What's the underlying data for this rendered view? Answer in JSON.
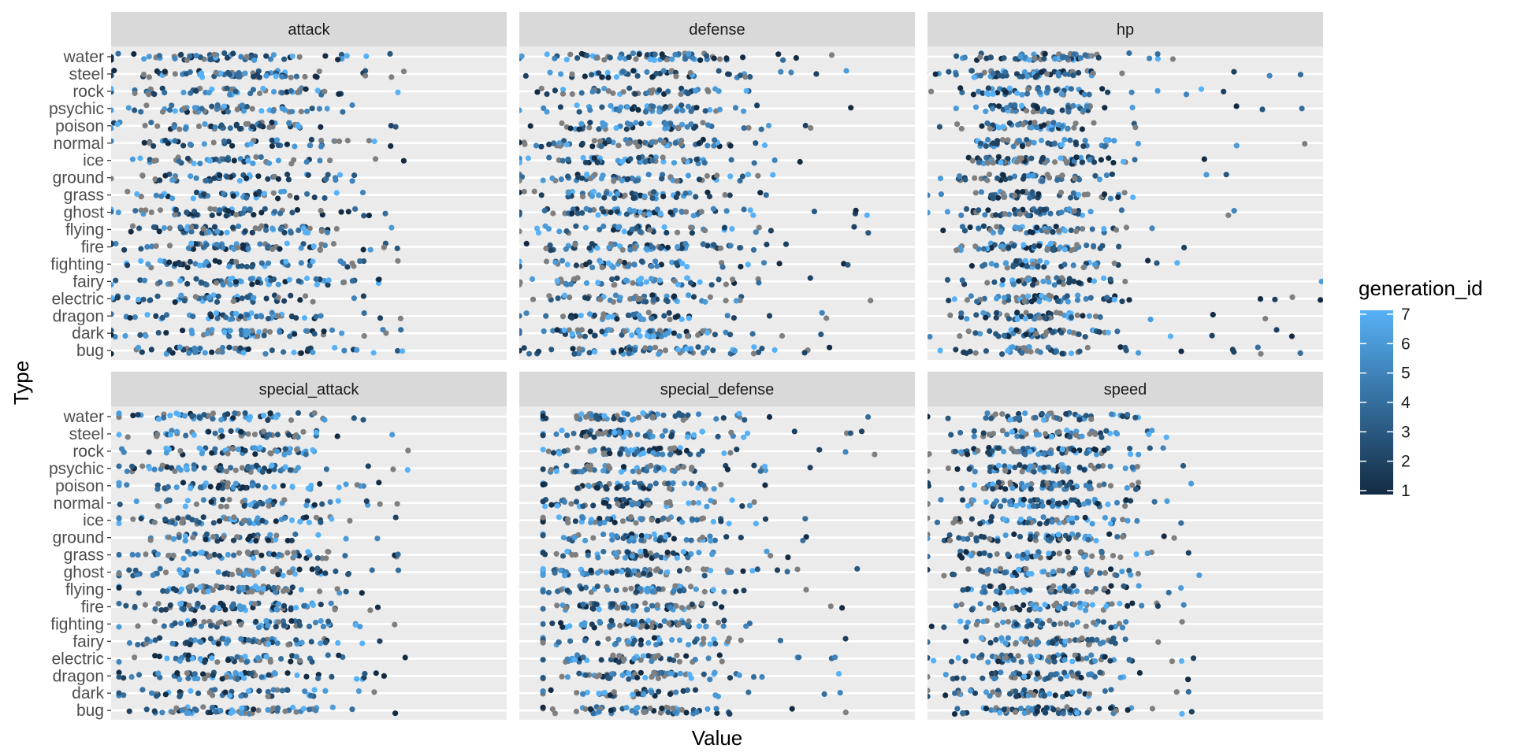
{
  "chart_data": {
    "type": "scatter",
    "subtype": "faceted-jitter-strip",
    "title": "",
    "xlabel": "Value",
    "ylabel": "Type",
    "facet_layout": "2x3 wrap",
    "shared_x_axis": true,
    "x_tick_labels_shown": false,
    "grid": "horizontal major lines",
    "legend_position": "right",
    "facets": [
      "attack",
      "defense",
      "hp",
      "special_attack",
      "special_defense",
      "speed"
    ],
    "types": [
      "water",
      "steel",
      "rock",
      "psychic",
      "poison",
      "normal",
      "ice",
      "ground",
      "grass",
      "ghost",
      "flying",
      "fire",
      "fighting",
      "fairy",
      "electric",
      "dragon",
      "dark",
      "bug"
    ],
    "color_scale": {
      "title": "generation_id",
      "type": "continuous",
      "min": 1,
      "max": 7,
      "breaks": [
        1,
        2,
        3,
        4,
        5,
        6,
        7
      ],
      "low_color": "#132B43",
      "high_color": "#56B1F7",
      "na_color": "#7f7f7f"
    },
    "x_range_approx": [
      5,
      255
    ],
    "series_summary": {
      "attack": {
        "min": 5,
        "max": 190,
        "typical_range": [
          40,
          120
        ]
      },
      "defense": {
        "min": 5,
        "max": 230,
        "typical_range": [
          40,
          120
        ]
      },
      "hp": {
        "min": 1,
        "max": 255,
        "typical_range": [
          45,
          100
        ]
      },
      "special_attack": {
        "min": 10,
        "max": 194,
        "typical_range": [
          40,
          120
        ]
      },
      "special_defense": {
        "min": 20,
        "max": 230,
        "typical_range": [
          40,
          110
        ]
      },
      "speed": {
        "min": 5,
        "max": 180,
        "typical_range": [
          40,
          110
        ]
      }
    }
  }
}
